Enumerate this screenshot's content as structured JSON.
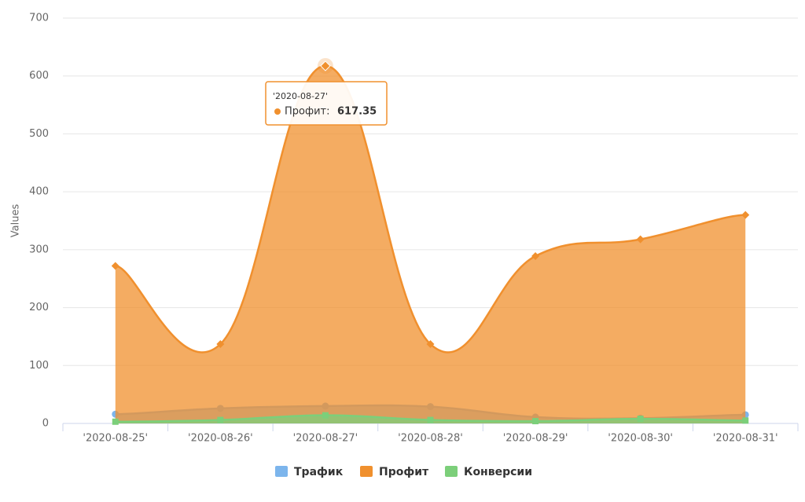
{
  "chart_data": {
    "type": "areaspline",
    "y_axis_title": "Values",
    "categories": [
      "'2020-08-25'",
      "'2020-08-26'",
      "'2020-08-27'",
      "'2020-08-28'",
      "'2020-08-29'",
      "'2020-08-30'",
      "'2020-08-31'"
    ],
    "series": [
      {
        "name": "Трафик",
        "color": "#7cb5ec",
        "values": [
          16,
          26,
          30,
          29,
          11,
          9,
          15
        ]
      },
      {
        "name": "Профит",
        "color": "#f0902e",
        "values": [
          272,
          137,
          617.35,
          137,
          289,
          318,
          360
        ]
      },
      {
        "name": "Конверсии",
        "color": "#7ccf7a",
        "values": [
          3,
          6,
          14,
          6,
          4,
          8,
          5
        ]
      }
    ],
    "ylim": [
      0,
      700
    ],
    "yticks": [
      0,
      100,
      200,
      300,
      400,
      500,
      600,
      700
    ],
    "grid": true,
    "legend": "bottom",
    "tooltip": {
      "header": "'2020-08-27'",
      "label": "Профит:"
    }
  }
}
